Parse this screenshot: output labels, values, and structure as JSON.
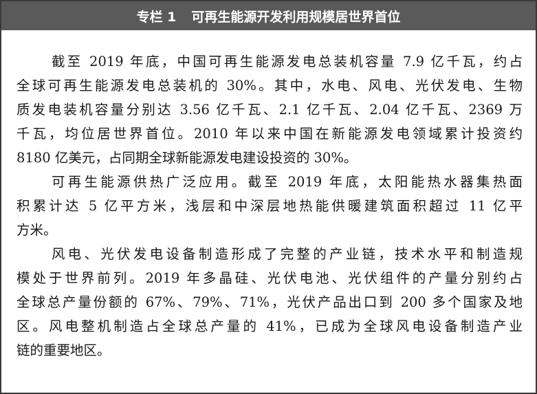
{
  "header": {
    "label": "专栏 1",
    "title": "可再生能源开发利用规模居世界首位"
  },
  "paragraphs": [
    {
      "lines": [
        "截至 2019 年底，中国可再生能源发电总装机容量 7.9 亿千瓦，约占",
        "全球可再生能源发电总装机的 30%。其中，水电、风电、光伏发电、生物",
        "质发电装机容量分别达 3.56 亿千瓦、2.1 亿千瓦、2.04 亿千瓦、2369 万",
        "千瓦，均位居世界首位。2010 年以来中国在新能源发电领域累计投资约",
        "8180 亿美元，占同期全球新能源发电建设投资的 30%。"
      ]
    },
    {
      "lines": [
        "可再生能源供热广泛应用。截至 2019 年底，太阳能热水器集热面",
        "积累计达 5 亿平方米，浅层和中深层地热能供暖建筑面积超过 11 亿平",
        "方米。"
      ]
    },
    {
      "lines": [
        "风电、光伏发电设备制造形成了完整的产业链，技术水平和制造规",
        "模处于世界前列。2019 年多晶硅、光伏电池、光伏组件的产量分别约占",
        "全球总产量份额的 67%、79%、71%，光伏产品出口到 200 多个国家及地",
        "区。风电整机制造占全球总产量的 41%，已成为全球风电设备制造产业",
        "链的重要地区。"
      ]
    }
  ]
}
